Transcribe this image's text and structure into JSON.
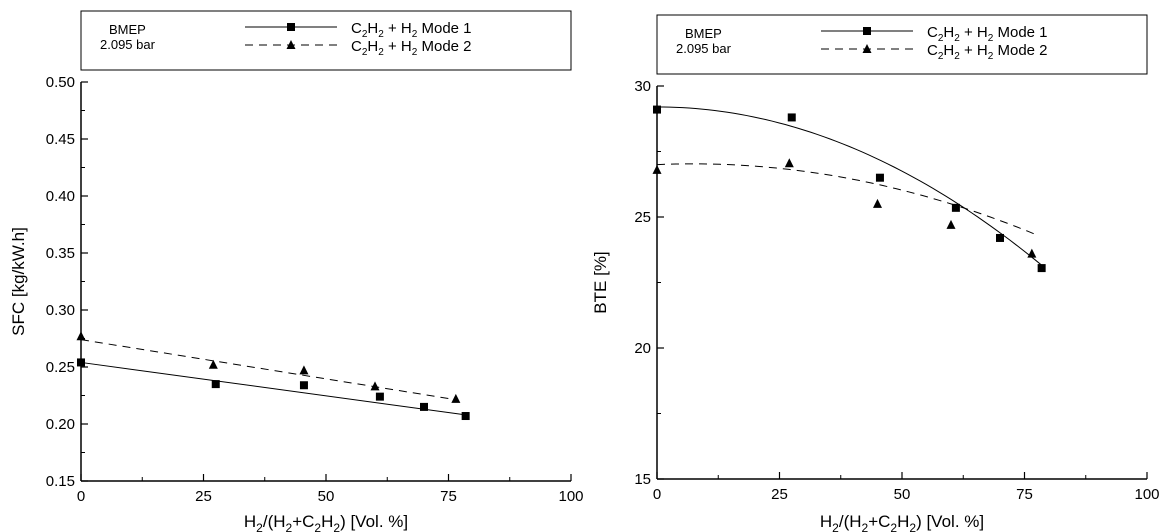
{
  "chart_data": [
    {
      "type": "scatter",
      "xlabel": {
        "parts": [
          [
            "H",
            ""
          ],
          [
            "2",
            "sub"
          ],
          [
            "/(H",
            ""
          ],
          [
            "2",
            "sub"
          ],
          [
            "+C",
            ""
          ],
          [
            "2",
            "sub"
          ],
          [
            "H",
            ""
          ],
          [
            "2",
            "sub"
          ],
          [
            ")   [Vol. %]",
            ""
          ]
        ]
      },
      "ylabel": "SFC [kg/kW.h]",
      "xlim": [
        0,
        100
      ],
      "ylim": [
        0.15,
        0.5
      ],
      "xticks": [
        0,
        25,
        50,
        75,
        100
      ],
      "yticks": [
        0.15,
        0.2,
        0.25,
        0.3,
        0.35,
        0.4,
        0.45,
        0.5
      ],
      "ytick_decimals": 2,
      "grid": false,
      "legend": {
        "condition_line1": "BMEP",
        "condition_line2": "2.095 bar",
        "position": "top"
      },
      "series": [
        {
          "name": "C2H2 + H2  Mode 1",
          "name_parts": [
            [
              "C",
              ""
            ],
            [
              "2",
              "sub"
            ],
            [
              "H",
              ""
            ],
            [
              "2",
              "sub"
            ],
            [
              " + H",
              ""
            ],
            [
              "2",
              "sub"
            ],
            [
              "  Mode 1",
              ""
            ]
          ],
          "marker": "square",
          "line": "solid",
          "points": [
            [
              0,
              0.254
            ],
            [
              27.5,
              0.235
            ],
            [
              45.5,
              0.234
            ],
            [
              61,
              0.224
            ],
            [
              70,
              0.215
            ],
            [
              78.5,
              0.207
            ]
          ],
          "fit": [
            [
              0,
              0.254
            ],
            [
              78.5,
              0.208
            ]
          ]
        },
        {
          "name": "C2H2 + H2  Mode 2",
          "name_parts": [
            [
              "C",
              ""
            ],
            [
              "2",
              "sub"
            ],
            [
              "H",
              ""
            ],
            [
              "2",
              "sub"
            ],
            [
              " + H",
              ""
            ],
            [
              "2",
              "sub"
            ],
            [
              "  Mode 2",
              ""
            ]
          ],
          "marker": "triangle",
          "line": "dashed",
          "points": [
            [
              0,
              0.277
            ],
            [
              27,
              0.252
            ],
            [
              45.5,
              0.247
            ],
            [
              60,
              0.233
            ],
            [
              76.5,
              0.222
            ]
          ],
          "fit": [
            [
              0,
              0.274
            ],
            [
              77,
              0.221
            ]
          ]
        }
      ]
    },
    {
      "type": "scatter",
      "xlabel": {
        "parts": [
          [
            "H",
            ""
          ],
          [
            "2",
            "sub"
          ],
          [
            "/(H",
            ""
          ],
          [
            "2",
            "sub"
          ],
          [
            "+C",
            ""
          ],
          [
            "2",
            "sub"
          ],
          [
            "H",
            ""
          ],
          [
            "2",
            "sub"
          ],
          [
            ")   [Vol. %]",
            ""
          ]
        ]
      },
      "ylabel": "BTE [%]",
      "xlim": [
        0,
        100
      ],
      "ylim": [
        15,
        30
      ],
      "xticks": [
        0,
        25,
        50,
        75,
        100
      ],
      "yticks": [
        15,
        20,
        25,
        30
      ],
      "ytick_decimals": 0,
      "grid": false,
      "legend": {
        "condition_line1": "BMEP",
        "condition_line2": "2.095 bar",
        "position": "top"
      },
      "series": [
        {
          "name": "C2H2 + H2  Mode 1",
          "name_parts": [
            [
              "C",
              ""
            ],
            [
              "2",
              "sub"
            ],
            [
              "H",
              ""
            ],
            [
              "2",
              "sub"
            ],
            [
              " + H",
              ""
            ],
            [
              "2",
              "sub"
            ],
            [
              "  Mode 1",
              ""
            ]
          ],
          "marker": "square",
          "line": "solid",
          "points": [
            [
              0,
              29.1
            ],
            [
              27.5,
              28.8
            ],
            [
              45.5,
              26.5
            ],
            [
              61,
              25.35
            ],
            [
              70,
              24.2
            ],
            [
              78.5,
              23.05
            ]
          ],
          "fit_quadratic": [
            29.2,
            0.0,
            -0.00098
          ],
          "fit_range": [
            0,
            78.5
          ]
        },
        {
          "name": "C2H2 + H2  Mode 2",
          "name_parts": [
            [
              "C",
              ""
            ],
            [
              "2",
              "sub"
            ],
            [
              "H",
              ""
            ],
            [
              "2",
              "sub"
            ],
            [
              " + H",
              ""
            ],
            [
              "2",
              "sub"
            ],
            [
              "  Mode 2",
              ""
            ]
          ],
          "marker": "triangle",
          "line": "dashed",
          "points": [
            [
              0,
              26.8
            ],
            [
              27,
              27.05
            ],
            [
              45,
              25.5
            ],
            [
              60,
              24.7
            ],
            [
              76.5,
              23.6
            ]
          ],
          "fit_quadratic": [
            27.0,
            0.008,
            -0.00055
          ],
          "fit_range": [
            0,
            77
          ]
        }
      ]
    }
  ]
}
